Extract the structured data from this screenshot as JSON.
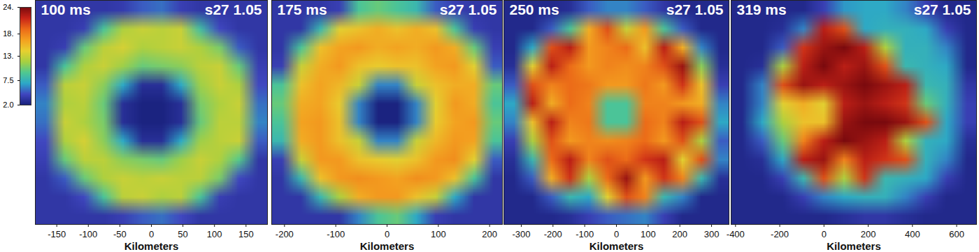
{
  "colorbar": {
    "range": [
      2,
      24
    ],
    "ticks": [
      {
        "value": 24,
        "label": "24."
      },
      {
        "value": 18,
        "label": "18."
      },
      {
        "value": 13,
        "label": "13."
      },
      7.5,
      {
        "value": 2,
        "label": "2.0"
      }
    ]
  },
  "chart_data": [
    {
      "type": "heatmap",
      "title": "100 ms",
      "annotation": "s27 1.05",
      "xlabel": "Kilometers",
      "xlim": [
        -184,
        184
      ],
      "xticks": [
        -150,
        -100,
        -50,
        0,
        50,
        100,
        150
      ],
      "ylim": [
        -178,
        178
      ],
      "tick_labels": "x",
      "cells": [
        [
          3.5,
          3.5,
          3.5,
          3.5,
          3.8,
          5,
          5.5,
          4,
          3.5,
          3.5,
          3.5,
          3.5
        ],
        [
          3.5,
          3.5,
          4,
          9,
          12,
          13,
          12.5,
          13,
          8.5,
          4.5,
          3.5,
          3.5
        ],
        [
          3.5,
          4,
          10,
          12.5,
          13.5,
          12,
          12.5,
          13,
          12,
          10.5,
          5,
          3.5
        ],
        [
          3.5,
          9,
          12,
          13,
          11.5,
          10,
          10.5,
          11,
          12.5,
          13,
          10,
          4
        ],
        [
          5,
          12.5,
          13,
          11,
          7,
          3,
          3,
          7,
          11.5,
          13,
          12,
          4.5
        ],
        [
          6,
          12,
          12.5,
          10,
          3,
          2.2,
          2.2,
          3,
          10.5,
          12,
          13,
          5.5
        ],
        [
          5.5,
          13,
          12,
          10.5,
          3,
          2.2,
          2.2,
          3,
          10,
          12.5,
          12.5,
          6
        ],
        [
          4.5,
          12,
          13.5,
          11,
          7,
          3,
          3,
          7,
          11.5,
          12.5,
          13,
          5
        ],
        [
          4,
          10,
          12.5,
          12.5,
          11,
          10.5,
          10,
          11.5,
          13,
          12,
          9.5,
          3.5
        ],
        [
          3.5,
          5,
          10,
          12,
          13,
          12.5,
          13,
          12.5,
          12.5,
          10.5,
          4.5,
          3.5
        ],
        [
          3.5,
          3.5,
          4.5,
          9,
          12.5,
          13,
          12,
          12.5,
          9,
          4,
          3.5,
          3.5
        ],
        [
          3.5,
          3.5,
          3.5,
          3.5,
          4,
          5,
          5.5,
          4.5,
          3.5,
          3.5,
          3.5,
          3.5
        ]
      ]
    },
    {
      "type": "heatmap",
      "title": "175 ms",
      "annotation": "s27 1.05",
      "xlabel": "Kilometers",
      "xlim": [
        -225,
        225
      ],
      "xticks": [
        -200,
        -100,
        0,
        100,
        200
      ],
      "ylim": [
        -219,
        219
      ],
      "tick_labels": "x",
      "cells": [
        [
          3.5,
          3.5,
          3.5,
          4,
          9,
          10,
          9,
          8,
          5,
          4,
          3.5,
          3.5
        ],
        [
          3.5,
          3.5,
          8,
          14,
          15,
          16,
          15,
          16,
          15,
          9,
          4,
          3.5
        ],
        [
          3.5,
          9,
          15,
          16.5,
          17,
          16,
          16.5,
          16,
          17,
          16,
          10,
          4
        ],
        [
          4,
          13,
          16,
          17,
          15,
          14.5,
          15,
          15,
          16.5,
          17,
          14,
          5
        ],
        [
          9,
          15,
          16.5,
          15.5,
          13,
          6,
          6,
          13,
          15,
          16,
          16,
          10
        ],
        [
          10,
          16,
          16.5,
          14.5,
          6,
          2.2,
          2.2,
          6,
          14,
          17,
          16,
          9
        ],
        [
          9,
          16.5,
          17,
          15,
          6,
          2.2,
          2.2,
          6,
          14.5,
          16.5,
          17,
          10
        ],
        [
          8,
          16,
          17,
          15,
          13,
          6,
          6,
          13,
          15.5,
          17,
          16.5,
          9
        ],
        [
          4,
          13,
          17,
          17,
          15,
          14.5,
          14,
          15,
          17,
          17.5,
          14,
          5
        ],
        [
          3.5,
          8,
          15,
          17,
          17.5,
          17,
          16.5,
          17.5,
          17,
          15,
          9,
          3.5
        ],
        [
          3.5,
          3.5,
          8,
          12,
          16,
          17,
          17,
          15,
          13,
          7,
          3.5,
          3.5
        ],
        [
          3.5,
          3.5,
          3.5,
          3.5,
          6,
          9,
          10,
          7,
          4,
          3.5,
          3.5,
          3.5
        ]
      ]
    },
    {
      "type": "heatmap",
      "title": "250 ms",
      "annotation": "s27 1.05",
      "xlabel": "Kilometers",
      "xlim": [
        -355,
        355
      ],
      "xticks": [
        -300,
        -200,
        -100,
        0,
        100,
        200,
        300
      ],
      "ylim": [
        -354,
        354
      ],
      "tick_labels": "x",
      "cells": [
        [
          2.6,
          2.6,
          2.6,
          3,
          5,
          6,
          6,
          5,
          3.5,
          2.6,
          2.6,
          2.6
        ],
        [
          2.6,
          2.6,
          5,
          9,
          16,
          20,
          13,
          17,
          9,
          5,
          2.6,
          2.6
        ],
        [
          2.6,
          7,
          20,
          22,
          17,
          18,
          19,
          15,
          22,
          16,
          6,
          2.6
        ],
        [
          3,
          14,
          22,
          19,
          17,
          18,
          17.5,
          18,
          20,
          23,
          11,
          3
        ],
        [
          5,
          20,
          18,
          19,
          18.5,
          17,
          17,
          18.5,
          17,
          21,
          15,
          4
        ],
        [
          7,
          22,
          16,
          19,
          18,
          9,
          9,
          18,
          18,
          17,
          16,
          6
        ],
        [
          6,
          15,
          22,
          18,
          18.5,
          9,
          9,
          19,
          18,
          22,
          20,
          7
        ],
        [
          4,
          12,
          20,
          17,
          18,
          17.5,
          18,
          19,
          17,
          20,
          12,
          5
        ],
        [
          3,
          8,
          19,
          22,
          18,
          20,
          19,
          21,
          22,
          14,
          20,
          6
        ],
        [
          2.6,
          5,
          16,
          21,
          12,
          19,
          23,
          17,
          21,
          18,
          8,
          3
        ],
        [
          2.6,
          2.6,
          5,
          8,
          7,
          14,
          20,
          18,
          8,
          6,
          2.6,
          2.6
        ],
        [
          2.6,
          2.6,
          2.6,
          3,
          4,
          5,
          5.5,
          6,
          4,
          2.6,
          2.6,
          2.6
        ]
      ]
    },
    {
      "type": "heatmap",
      "title": "319 ms",
      "annotation": "s27 1.05",
      "xlabel": "Kilometers",
      "xlim": [
        -420,
        690
      ],
      "xticks": [
        -400,
        -200,
        0,
        200,
        400,
        600
      ],
      "ylim": [
        -508,
        508
      ],
      "tick_labels": "x",
      "cells": [
        [
          2.6,
          2.6,
          2.6,
          2.6,
          4,
          6.5,
          7,
          7,
          6,
          4,
          2.6,
          2.6
        ],
        [
          2.6,
          2.6,
          3,
          6,
          22,
          20,
          7,
          7.5,
          7.5,
          7,
          4,
          2.6
        ],
        [
          2.6,
          2.6,
          5,
          21,
          23,
          24,
          22,
          12,
          7.5,
          7.5,
          6,
          2.6
        ],
        [
          2.6,
          3,
          12,
          22,
          24,
          22,
          23,
          20,
          8,
          7.5,
          7,
          2.6
        ],
        [
          2.6,
          6,
          20,
          23,
          22,
          23,
          24,
          23,
          22,
          8,
          7.5,
          3.5
        ],
        [
          2.6,
          6,
          14,
          16,
          14,
          22,
          23,
          22,
          21,
          10,
          7.5,
          4
        ],
        [
          2.6,
          7,
          12,
          15,
          15,
          23,
          24,
          24,
          23,
          20,
          7,
          4
        ],
        [
          2.6,
          5,
          10,
          18,
          22,
          24,
          23,
          22,
          12,
          7.5,
          7,
          3
        ],
        [
          2.6,
          3,
          7,
          22,
          23,
          18,
          22,
          21,
          20,
          7.5,
          6,
          2.6
        ],
        [
          2.6,
          2.6,
          4,
          8,
          20,
          12,
          21,
          8,
          7.5,
          7,
          4,
          2.6
        ],
        [
          2.6,
          2.6,
          2.6,
          4,
          6,
          7,
          7.5,
          7.5,
          6,
          4,
          2.6,
          2.6
        ],
        [
          2.6,
          2.6,
          2.6,
          2.6,
          2.6,
          3,
          3.5,
          3.5,
          3,
          2.6,
          2.6,
          2.6
        ]
      ]
    }
  ]
}
